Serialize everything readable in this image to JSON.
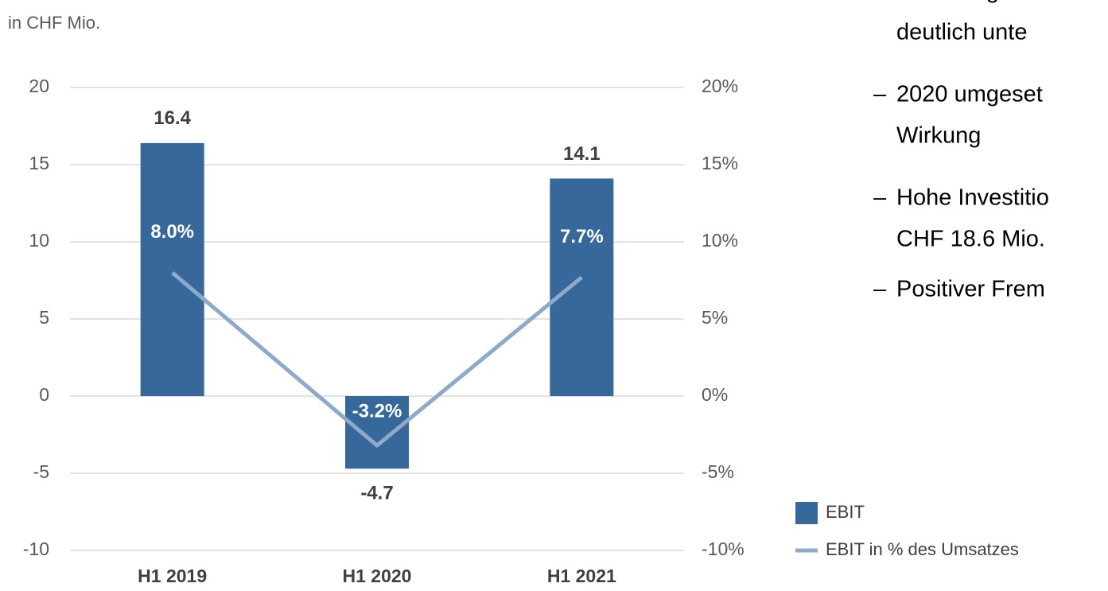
{
  "chart_data": {
    "type": "bar_line",
    "subtitle": "in CHF Mio.",
    "categories": [
      "H1 2019",
      "H1 2020",
      "H1 2021"
    ],
    "series": [
      {
        "name": "EBIT",
        "color": "#36689b",
        "type": "bar",
        "values": [
          16.4,
          -4.7,
          14.1
        ]
      },
      {
        "name": "EBIT in % des Umsatzes",
        "color": "#8ea9c9",
        "type": "line",
        "axis": "y2",
        "values": [
          8.0,
          -3.2,
          7.7
        ],
        "value_labels": [
          "8.0%",
          "-3.2%",
          "7.7%"
        ]
      }
    ],
    "ylim": [
      -10,
      20
    ],
    "yticks": [
      -10,
      -5,
      0,
      5,
      10,
      15,
      20
    ],
    "y2lim": [
      -10,
      20
    ],
    "y2ticks": [
      {
        "value": -10,
        "label": "-10%"
      },
      {
        "value": -5,
        "label": "-5%"
      },
      {
        "value": 0,
        "label": "0%"
      },
      {
        "value": 5,
        "label": "5%"
      },
      {
        "value": 10,
        "label": "10%"
      },
      {
        "value": 15,
        "label": "15%"
      },
      {
        "value": 20,
        "label": "20%"
      }
    ],
    "grid": true,
    "legend": "bottom-right"
  },
  "text_panel": {
    "bullets": [
      [
        "Volumenges",
        "deutlich unte"
      ],
      [
        "2020 umgeset",
        "Wirkung"
      ],
      [
        "Hohe Investitio",
        "CHF 18.6 Mio."
      ],
      [
        "Positiver Frem"
      ]
    ]
  }
}
